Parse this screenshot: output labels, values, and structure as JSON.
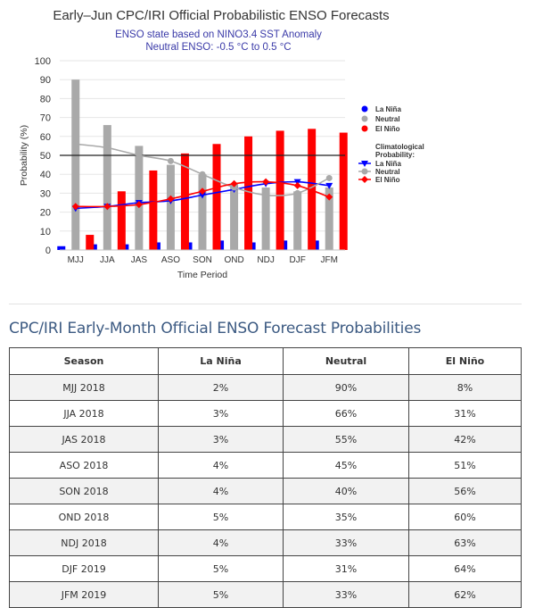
{
  "chart_data": {
    "type": "bar",
    "title": "Early–Jun CPC/IRI Official Probabilistic ENSO Forecasts",
    "subtitle_lines": [
      "ENSO state based on NINO3.4 SST Anomaly",
      "Neutral ENSO: -0.5 °C to 0.5 °C"
    ],
    "xlabel": "Time Period",
    "ylabel": "Probability (%)",
    "ylim": [
      0,
      100
    ],
    "yticks": [
      0,
      10,
      20,
      30,
      40,
      50,
      60,
      70,
      80,
      90,
      100
    ],
    "reference_line": 50,
    "categories": [
      "MJJ",
      "JJA",
      "JAS",
      "ASO",
      "SON",
      "OND",
      "NDJ",
      "DJF",
      "JFM"
    ],
    "series": [
      {
        "name": "La Niña",
        "kind": "bar",
        "color": "#0000ff",
        "values": [
          2,
          3,
          3,
          4,
          4,
          5,
          4,
          5,
          5
        ]
      },
      {
        "name": "Neutral",
        "kind": "bar",
        "color": "#a9a9a9",
        "values": [
          90,
          66,
          55,
          45,
          40,
          35,
          33,
          31,
          33
        ]
      },
      {
        "name": "El Niño",
        "kind": "bar",
        "color": "#ff0000",
        "values": [
          8,
          31,
          42,
          51,
          56,
          60,
          63,
          64,
          62
        ]
      }
    ],
    "climatology_header": [
      "Climatological",
      "Probability:"
    ],
    "climatology": [
      {
        "name": "La Niña",
        "color": "#0000ff",
        "marker": "triangle-down",
        "values": [
          22,
          23,
          25,
          26,
          29,
          32,
          35,
          36,
          34
        ]
      },
      {
        "name": "Neutral",
        "color": "#a9a9a9",
        "marker": "circle",
        "values": [
          56,
          54,
          50,
          47,
          40,
          33,
          29,
          30,
          38
        ]
      },
      {
        "name": "El Niño",
        "color": "#ff0000",
        "marker": "diamond",
        "values": [
          23,
          23,
          24,
          27,
          31,
          35,
          36,
          34,
          28
        ]
      }
    ]
  },
  "table": {
    "title": "CPC/IRI Early-Month Official ENSO Forecast Probabilities",
    "headers": [
      "Season",
      "La Niña",
      "Neutral",
      "El Niño"
    ],
    "rows": [
      [
        "MJJ 2018",
        "2%",
        "90%",
        "8%"
      ],
      [
        "JJA 2018",
        "3%",
        "66%",
        "31%"
      ],
      [
        "JAS 2018",
        "3%",
        "55%",
        "42%"
      ],
      [
        "ASO 2018",
        "4%",
        "45%",
        "51%"
      ],
      [
        "SON 2018",
        "4%",
        "40%",
        "56%"
      ],
      [
        "OND 2018",
        "5%",
        "35%",
        "60%"
      ],
      [
        "NDJ 2018",
        "4%",
        "33%",
        "63%"
      ],
      [
        "DJF 2019",
        "5%",
        "31%",
        "64%"
      ],
      [
        "JFM 2019",
        "5%",
        "33%",
        "62%"
      ]
    ]
  }
}
